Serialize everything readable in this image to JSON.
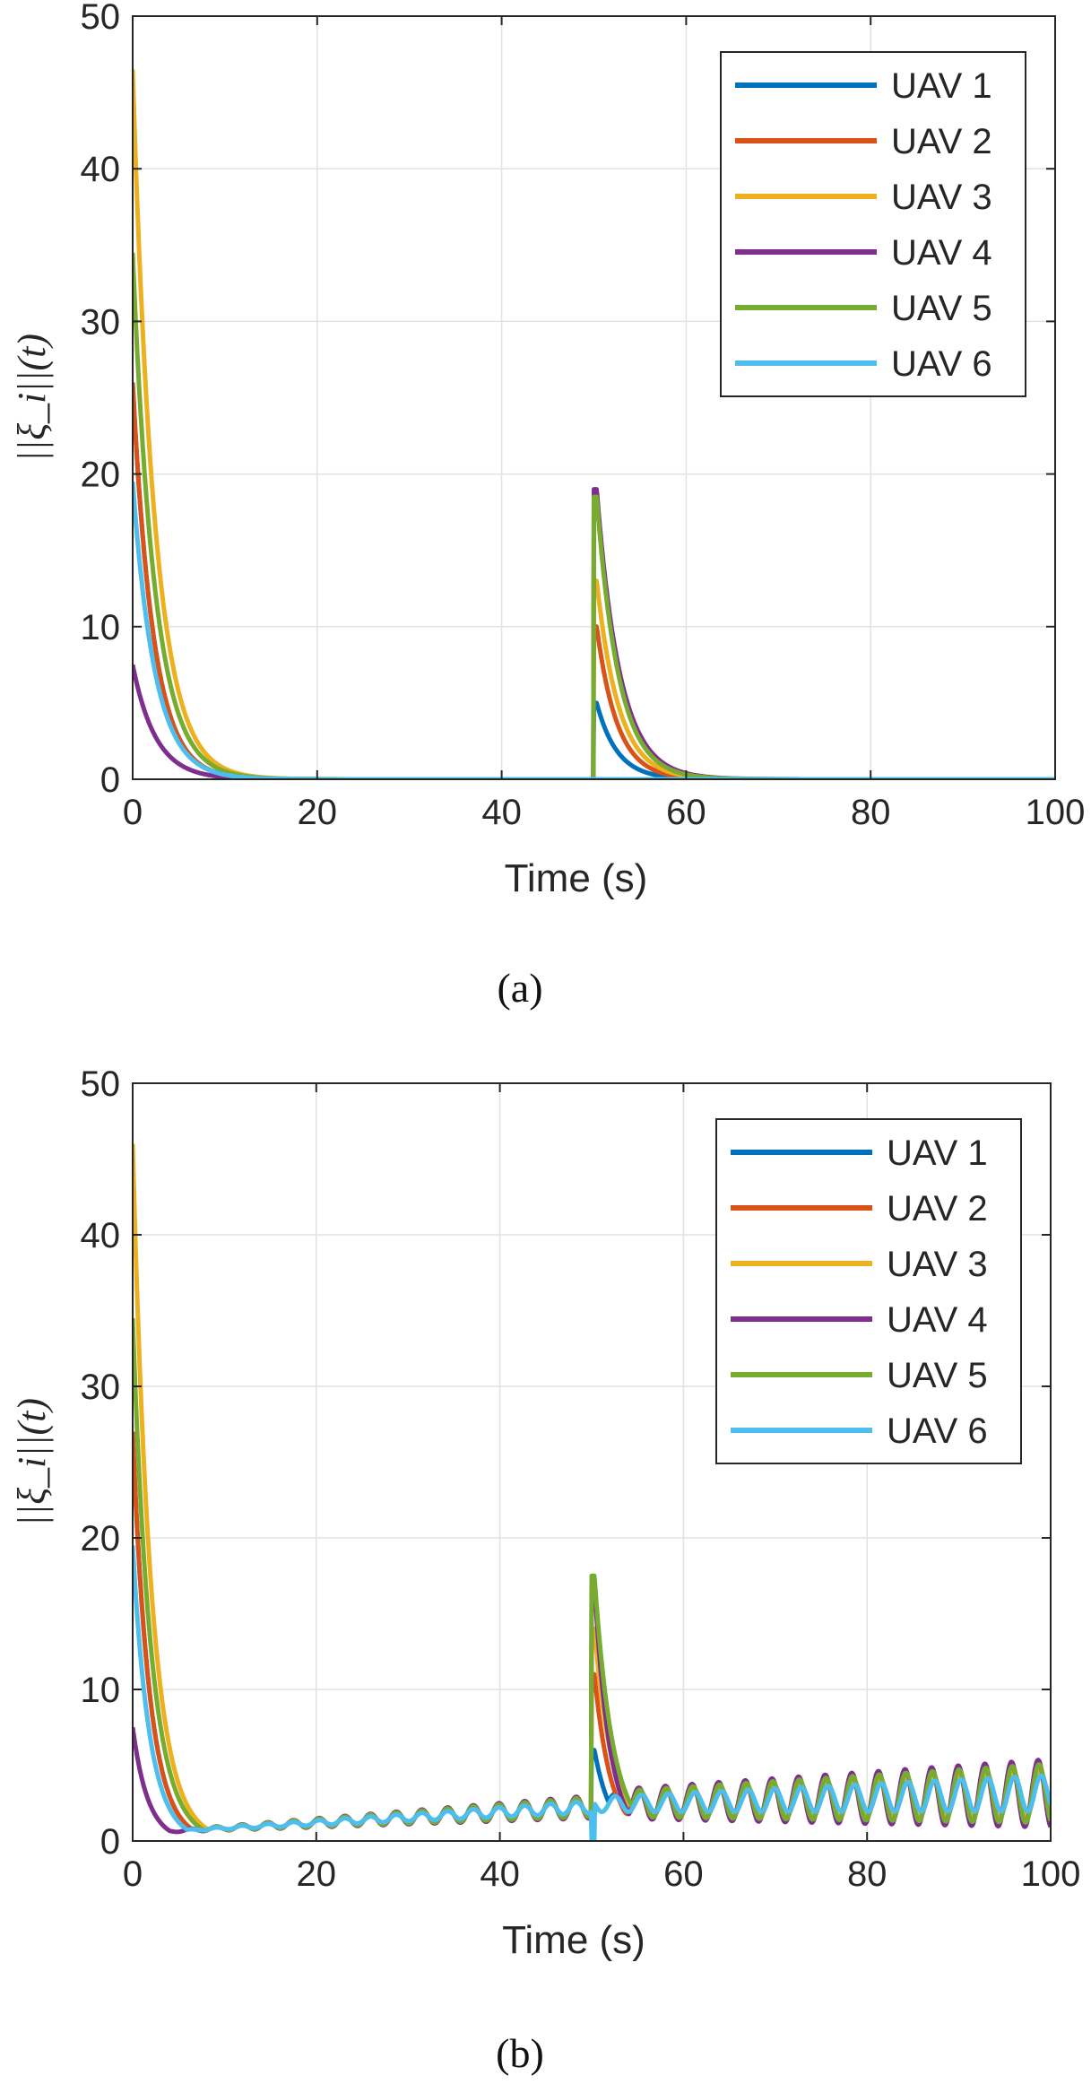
{
  "chart_data": [
    {
      "type": "line",
      "caption": "(a)",
      "xlabel": "Time (s)",
      "ylabel": "||ξ_i||(t)",
      "xlim": [
        0,
        100
      ],
      "ylim": [
        0,
        50
      ],
      "xticks": [
        0,
        20,
        40,
        60,
        80,
        100
      ],
      "yticks": [
        0,
        10,
        20,
        30,
        40,
        50
      ],
      "grid": true,
      "legend_position": "top-right",
      "series": [
        {
          "name": "UAV 1",
          "color": "#0072BD",
          "initial_peak": 26,
          "disturbance_peak": 5,
          "oscillation": 0,
          "decay_rate": 0.45
        },
        {
          "name": "UAV 2",
          "color": "#D95319",
          "initial_peak": 26,
          "disturbance_peak": 10,
          "oscillation": 0,
          "decay_rate": 0.45
        },
        {
          "name": "UAV 3",
          "color": "#EDB120",
          "initial_peak": 46.5,
          "disturbance_peak": 13,
          "oscillation": 0,
          "decay_rate": 0.42
        },
        {
          "name": "UAV 4",
          "color": "#7E2F8E",
          "initial_peak": 7.5,
          "disturbance_peak": 19,
          "oscillation": 0,
          "decay_rate": 0.4
        },
        {
          "name": "UAV 5",
          "color": "#77AC30",
          "initial_peak": 34.5,
          "disturbance_peak": 18.5,
          "oscillation": 0,
          "decay_rate": 0.42
        },
        {
          "name": "UAV 6",
          "color": "#4DBEEE",
          "initial_peak": 19.5,
          "disturbance_peak": 0,
          "oscillation": 0,
          "decay_rate": 0.42
        }
      ]
    },
    {
      "type": "line",
      "caption": "(b)",
      "xlabel": "Time (s)",
      "ylabel": "||ξ_i||(t)",
      "xlim": [
        0,
        100
      ],
      "ylim": [
        0,
        50
      ],
      "xticks": [
        0,
        20,
        40,
        60,
        80,
        100
      ],
      "yticks": [
        0,
        10,
        20,
        30,
        40,
        50
      ],
      "grid": true,
      "legend_position": "top-right",
      "series": [
        {
          "name": "UAV 1",
          "color": "#0072BD",
          "initial_peak": 27,
          "disturbance_peak": 6,
          "oscillation": 1.0,
          "decay_rate": 0.55
        },
        {
          "name": "UAV 2",
          "color": "#D95319",
          "initial_peak": 27,
          "disturbance_peak": 11,
          "oscillation": 1.0,
          "decay_rate": 0.55
        },
        {
          "name": "UAV 3",
          "color": "#EDB120",
          "initial_peak": 46,
          "disturbance_peak": 14,
          "oscillation": 1.0,
          "decay_rate": 0.5
        },
        {
          "name": "UAV 4",
          "color": "#7E2F8E",
          "initial_peak": 7.5,
          "disturbance_peak": 17,
          "oscillation": 1.5,
          "decay_rate": 0.6
        },
        {
          "name": "UAV 5",
          "color": "#77AC30",
          "initial_peak": 34.5,
          "disturbance_peak": 17.5,
          "oscillation": 1.3,
          "decay_rate": 0.5
        },
        {
          "name": "UAV 6",
          "color": "#4DBEEE",
          "initial_peak": 19.5,
          "disturbance_peak": 0,
          "oscillation": 0.8,
          "decay_rate": 0.55
        }
      ]
    }
  ]
}
